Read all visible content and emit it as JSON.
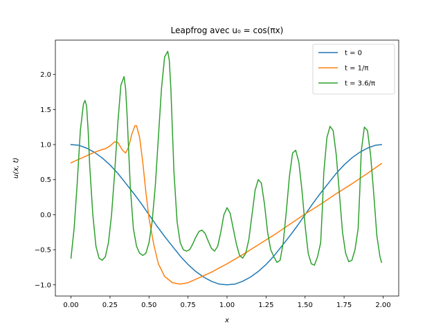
{
  "chart_data": {
    "type": "line",
    "title": "Leapfrog avec u₀ = cos(πx)",
    "xlabel": "x",
    "ylabel": "u(x, t)",
    "xlim": [
      -0.1,
      2.1
    ],
    "ylim": [
      -1.16,
      2.49
    ],
    "xticks": [
      0.0,
      0.25,
      0.5,
      0.75,
      1.0,
      1.25,
      1.5,
      1.75,
      2.0
    ],
    "xtick_labels": [
      "0.00",
      "0.25",
      "0.50",
      "0.75",
      "1.00",
      "1.25",
      "1.50",
      "1.75",
      "2.00"
    ],
    "yticks": [
      -1.0,
      -0.5,
      0.0,
      0.5,
      1.0,
      1.5,
      2.0
    ],
    "ytick_labels": [
      "−1.0",
      "−0.5",
      "0.0",
      "0.5",
      "1.0",
      "1.5",
      "2.0"
    ],
    "grid": false,
    "legend_position": "top-right",
    "series": [
      {
        "name": "t = 0",
        "color": "#1f77b4",
        "x": [
          0.0,
          0.05,
          0.1,
          0.15,
          0.2,
          0.25,
          0.3,
          0.35,
          0.4,
          0.45,
          0.5,
          0.55,
          0.6,
          0.65,
          0.7,
          0.75,
          0.8,
          0.85,
          0.9,
          0.95,
          1.0,
          1.05,
          1.1,
          1.15,
          1.2,
          1.25,
          1.3,
          1.35,
          1.4,
          1.45,
          1.5,
          1.55,
          1.6,
          1.65,
          1.7,
          1.75,
          1.8,
          1.85,
          1.9,
          1.95,
          1.99
        ],
        "y": [
          1.0,
          0.99,
          0.95,
          0.89,
          0.81,
          0.71,
          0.59,
          0.45,
          0.31,
          0.16,
          0.0,
          -0.16,
          -0.31,
          -0.45,
          -0.59,
          -0.71,
          -0.81,
          -0.89,
          -0.95,
          -0.99,
          -1.0,
          -0.99,
          -0.95,
          -0.89,
          -0.81,
          -0.71,
          -0.59,
          -0.45,
          -0.31,
          -0.16,
          0.0,
          0.16,
          0.31,
          0.45,
          0.59,
          0.71,
          0.81,
          0.89,
          0.95,
          0.99,
          1.0
        ]
      },
      {
        "name": "t = 1/π",
        "color": "#ff7f0e",
        "x": [
          0.0,
          0.05,
          0.1,
          0.15,
          0.2,
          0.22,
          0.25,
          0.28,
          0.3,
          0.33,
          0.35,
          0.37,
          0.39,
          0.41,
          0.42,
          0.44,
          0.46,
          0.48,
          0.5,
          0.53,
          0.56,
          0.6,
          0.65,
          0.7,
          0.75,
          0.8,
          0.9,
          1.0,
          1.1,
          1.2,
          1.3,
          1.4,
          1.5,
          1.6,
          1.7,
          1.8,
          1.9,
          1.99
        ],
        "y": [
          0.74,
          0.79,
          0.84,
          0.89,
          0.93,
          0.94,
          0.98,
          1.04,
          1.03,
          0.92,
          0.88,
          0.97,
          1.15,
          1.27,
          1.27,
          1.1,
          0.75,
          0.32,
          -0.05,
          -0.42,
          -0.7,
          -0.88,
          -0.97,
          -0.99,
          -0.97,
          -0.92,
          -0.82,
          -0.7,
          -0.57,
          -0.43,
          -0.29,
          -0.14,
          0.01,
          0.15,
          0.3,
          0.44,
          0.59,
          0.73
        ]
      },
      {
        "name": "t = 3.6/π",
        "color": "#2ca02c",
        "x": [
          0.0,
          0.02,
          0.04,
          0.06,
          0.08,
          0.09,
          0.1,
          0.11,
          0.12,
          0.14,
          0.16,
          0.18,
          0.2,
          0.22,
          0.24,
          0.26,
          0.28,
          0.3,
          0.32,
          0.34,
          0.35,
          0.36,
          0.37,
          0.38,
          0.4,
          0.42,
          0.44,
          0.46,
          0.48,
          0.5,
          0.52,
          0.54,
          0.56,
          0.58,
          0.6,
          0.62,
          0.63,
          0.64,
          0.65,
          0.66,
          0.68,
          0.7,
          0.72,
          0.74,
          0.76,
          0.78,
          0.8,
          0.82,
          0.84,
          0.86,
          0.88,
          0.9,
          0.92,
          0.94,
          0.96,
          0.98,
          1.0,
          1.02,
          1.04,
          1.06,
          1.08,
          1.1,
          1.12,
          1.14,
          1.16,
          1.18,
          1.2,
          1.22,
          1.24,
          1.26,
          1.28,
          1.3,
          1.32,
          1.34,
          1.36,
          1.38,
          1.4,
          1.42,
          1.44,
          1.46,
          1.48,
          1.5,
          1.52,
          1.54,
          1.56,
          1.58,
          1.6,
          1.61,
          1.62,
          1.64,
          1.66,
          1.68,
          1.7,
          1.72,
          1.74,
          1.76,
          1.78,
          1.8,
          1.82,
          1.84,
          1.85,
          1.86,
          1.88,
          1.9,
          1.92,
          1.94,
          1.96,
          1.98,
          1.99
        ],
        "y": [
          -0.62,
          -0.2,
          0.45,
          1.2,
          1.58,
          1.63,
          1.55,
          1.2,
          0.7,
          0.0,
          -0.45,
          -0.62,
          -0.65,
          -0.6,
          -0.4,
          0.0,
          0.6,
          1.3,
          1.85,
          1.97,
          1.8,
          1.4,
          0.9,
          0.4,
          -0.2,
          -0.45,
          -0.55,
          -0.58,
          -0.55,
          -0.4,
          -0.1,
          0.4,
          1.1,
          1.8,
          2.25,
          2.33,
          2.2,
          1.8,
          1.2,
          0.6,
          -0.1,
          -0.4,
          -0.5,
          -0.52,
          -0.5,
          -0.42,
          -0.32,
          -0.24,
          -0.22,
          -0.27,
          -0.38,
          -0.48,
          -0.52,
          -0.45,
          -0.25,
          0.0,
          0.1,
          0.02,
          -0.2,
          -0.42,
          -0.58,
          -0.62,
          -0.55,
          -0.35,
          0.0,
          0.35,
          0.5,
          0.45,
          0.15,
          -0.25,
          -0.5,
          -0.6,
          -0.68,
          -0.65,
          -0.4,
          0.05,
          0.55,
          0.88,
          0.92,
          0.75,
          0.35,
          -0.15,
          -0.55,
          -0.7,
          -0.72,
          -0.6,
          -0.4,
          0.05,
          0.6,
          1.1,
          1.26,
          1.2,
          0.85,
          0.3,
          -0.25,
          -0.55,
          -0.67,
          -0.65,
          -0.5,
          -0.2,
          0.3,
          0.9,
          1.25,
          1.2,
          0.85,
          0.3,
          -0.3,
          -0.6,
          -0.68
        ]
      }
    ]
  }
}
